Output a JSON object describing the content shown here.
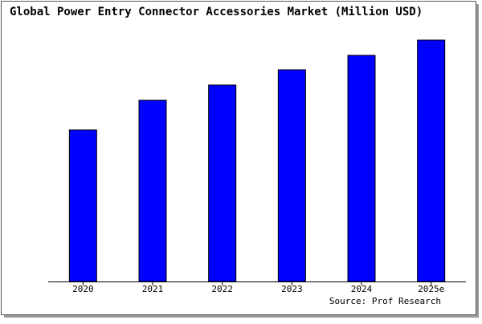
{
  "chart_data": {
    "type": "bar",
    "title": "Global Power Entry Connector Accessories Market (Million USD)",
    "categories": [
      "2020",
      "2021",
      "2022",
      "2023",
      "2024",
      "2025e"
    ],
    "values": [
      189,
      226,
      245,
      264,
      282,
      301
    ],
    "color": "#0000ff",
    "source": "Source: Prof Research"
  }
}
